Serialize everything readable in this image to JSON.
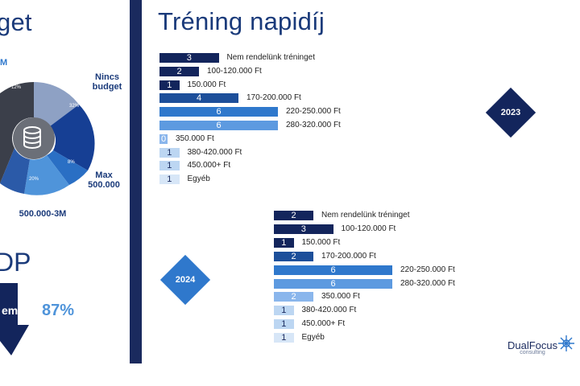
{
  "left": {
    "title_fragment": "get",
    "top_fragment": "M",
    "pie_labels": {
      "nincs_budget": "Nincs budget",
      "max": "Max 500.000",
      "range": "500.000-3M"
    },
    "pie_percents": [
      "12%",
      "32%",
      "8%",
      "20%",
      "20%"
    ],
    "dp_fragment": "DP",
    "em_fragment": "em",
    "big_percent": "87%"
  },
  "title": "Tréning napidíj",
  "logo": {
    "name": "DualFocus",
    "sub": "consulting"
  },
  "colors": {
    "navy": "#13255c",
    "blue1": "#1d4f9a",
    "blue2": "#2f78cc",
    "blue3": "#5d9ae0",
    "blue4": "#8ab6ec",
    "light": "#bcd6f2",
    "lightest": "#d7e6f7"
  },
  "chart_data": [
    {
      "type": "bar",
      "year_badge": "2023",
      "categories": [
        "Nem rendelünk tréninget",
        "100-120.000 Ft",
        "150.000 Ft",
        "170-200.000 Ft",
        "220-250.000 Ft",
        "280-320.000 Ft",
        "350.000 Ft",
        "380-420.000 Ft",
        "450.000+ Ft",
        "Egyéb"
      ],
      "values": [
        3,
        2,
        1,
        4,
        6,
        6,
        0,
        1,
        1,
        1
      ]
    },
    {
      "type": "bar",
      "year_badge": "2024",
      "categories": [
        "Nem rendelünk tréninget",
        "100-120.000 Ft",
        "150.000 Ft",
        "170-200.000 Ft",
        "220-250.000 Ft",
        "280-320.000 Ft",
        "350.000 Ft",
        "380-420.000 Ft",
        "450.000+ Ft",
        "Egyéb"
      ],
      "values": [
        2,
        3,
        1,
        2,
        6,
        6,
        2,
        1,
        1,
        1
      ]
    }
  ]
}
